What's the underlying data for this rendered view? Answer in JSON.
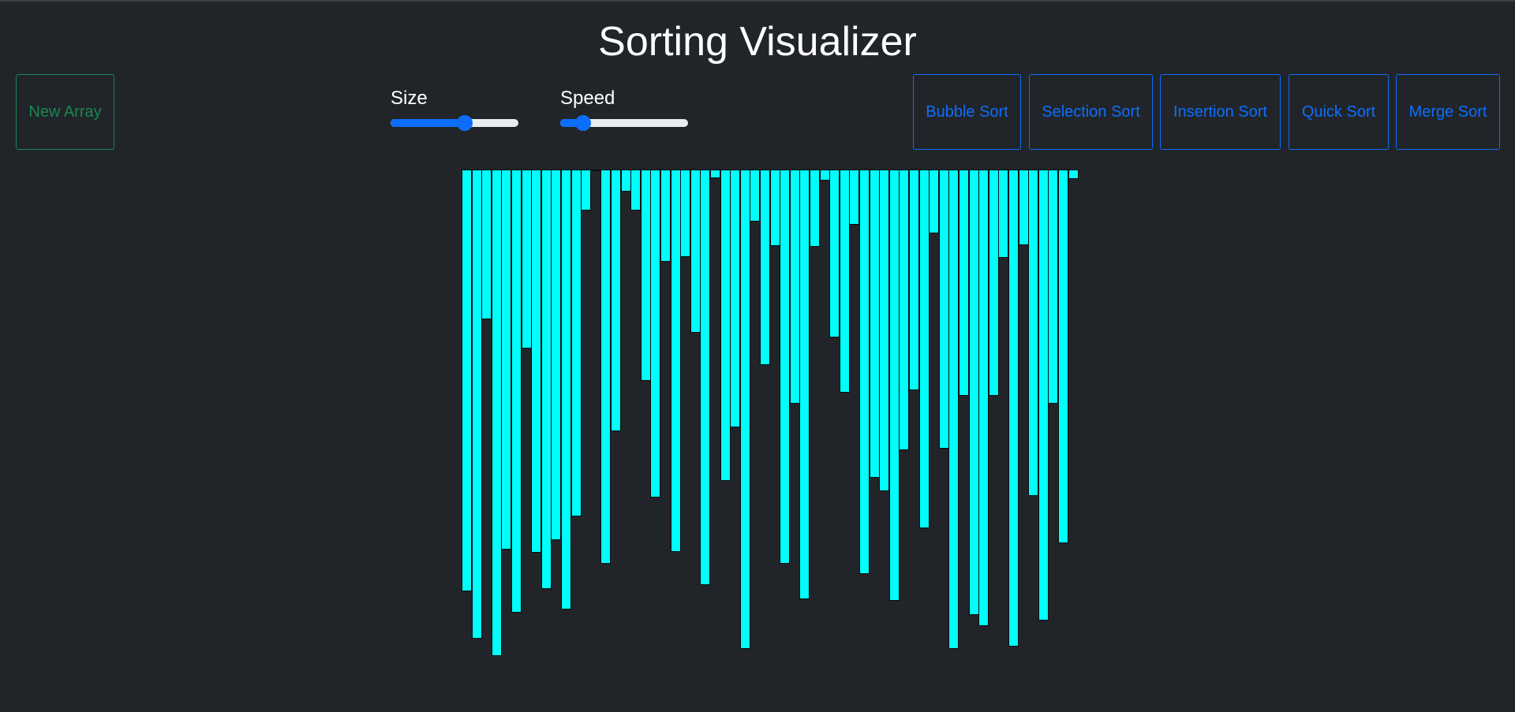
{
  "page": {
    "title": "Sorting Visualizer"
  },
  "toolbar": {
    "new_array_label": "New Array",
    "size_label": "Size",
    "speed_label": "Speed",
    "size_value": 0.58,
    "speed_value": 0.18,
    "sort_buttons": [
      {
        "label": "Bubble Sort"
      },
      {
        "label": "Selection Sort"
      },
      {
        "label": "Insertion Sort"
      },
      {
        "label": "Quick Sort"
      },
      {
        "label": "Merge Sort"
      }
    ]
  },
  "colors": {
    "background": "#212529",
    "bar": "#00fffa",
    "primary": "#0d6efd",
    "success": "#198754"
  },
  "array_values": [
    535,
    595,
    190,
    617,
    482,
    562,
    227,
    486,
    532,
    470,
    558,
    440,
    52,
    2,
    500,
    332,
    28,
    52,
    268,
    416,
    117,
    485,
    111,
    207,
    527,
    11,
    395,
    327,
    608,
    66,
    248,
    97,
    500,
    297,
    545,
    98,
    14,
    213,
    283,
    70,
    513,
    391,
    408,
    547,
    356,
    280,
    455,
    81,
    354,
    608,
    287,
    565,
    579,
    287,
    112,
    605,
    96,
    414,
    572,
    297,
    474,
    12
  ]
}
